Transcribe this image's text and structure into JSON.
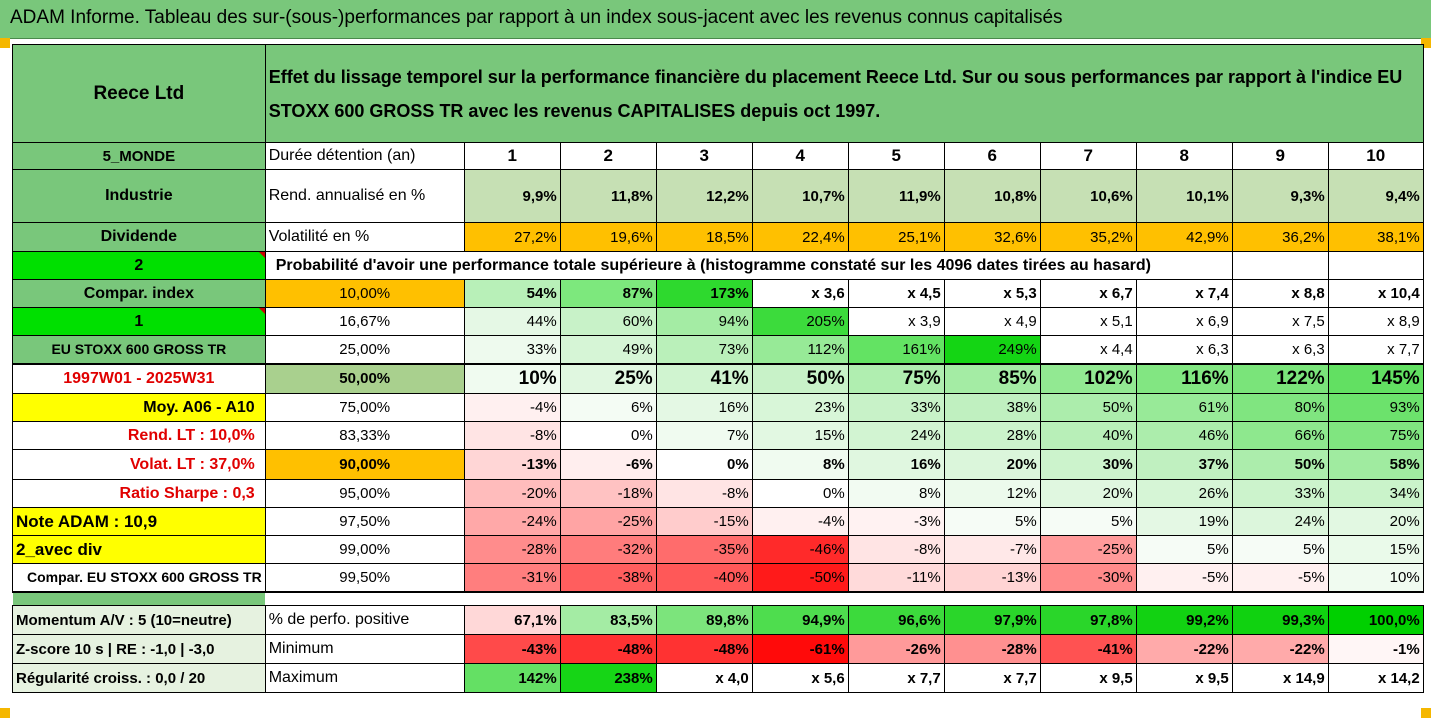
{
  "title": "ADAM Informe. Tableau des sur-(sous-)performances par rapport à un index sous-jacent avec les revenus connus capitalisés",
  "header": {
    "company": "Reece Ltd",
    "description_line1": "Effet du lissage temporel sur la performance financière du placement Reece Ltd. Sur ou sous performances par rapport à l'indice EU",
    "description_line2": "STOXX 600 GROSS TR avec les revenus CAPITALISES depuis oct 1997."
  },
  "colors": {
    "header_green": "#79c77b",
    "bright_green": "#00e000",
    "orange": "#ffc000",
    "yellow": "#ffff00",
    "red": "#ff0000"
  },
  "rows": [
    {
      "side": "5_MONDE",
      "label": "Durée détention (an)",
      "values": [
        "1",
        "2",
        "3",
        "4",
        "5",
        "6",
        "7",
        "8",
        "9",
        "10"
      ]
    },
    {
      "side": "Industrie",
      "label": "Rend. annualisé en %",
      "values": [
        "9,9%",
        "11,8%",
        "12,2%",
        "10,7%",
        "11,9%",
        "10,8%",
        "10,6%",
        "10,1%",
        "9,3%",
        "9,4%"
      ]
    },
    {
      "side": "Dividende",
      "label": "Volatilité en %",
      "values": [
        "27,2%",
        "19,6%",
        "18,5%",
        "22,4%",
        "25,1%",
        "32,6%",
        "35,2%",
        "42,9%",
        "36,2%",
        "38,1%"
      ]
    },
    {
      "side": "2",
      "label": "Probabilité d'avoir une performance totale supérieure à (histogramme constaté sur les 4096 dates tirées au hasard)"
    },
    {
      "side": "Compar. index",
      "pct": "10,00%",
      "values": [
        "54%",
        "87%",
        "173%",
        "x 3,6",
        "x 4,5",
        "x 5,3",
        "x 6,7",
        "x 7,4",
        "x 8,8",
        "x 10,4"
      ]
    },
    {
      "side": "1",
      "pct": "16,67%",
      "values": [
        "44%",
        "60%",
        "94%",
        "205%",
        "x 3,9",
        "x 4,9",
        "x 5,1",
        "x 6,9",
        "x 7,5",
        "x 8,9"
      ]
    },
    {
      "side": "EU STOXX 600 GROSS TR",
      "pct": "25,00%",
      "values": [
        "33%",
        "49%",
        "73%",
        "112%",
        "161%",
        "249%",
        "x 4,4",
        "x 6,3",
        "x 6,3",
        "x 7,7"
      ]
    },
    {
      "side": "1997W01 - 2025W31",
      "pct": "50,00%",
      "values": [
        "10%",
        "25%",
        "41%",
        "50%",
        "75%",
        "85%",
        "102%",
        "116%",
        "122%",
        "145%"
      ]
    },
    {
      "side": "Moy. A06 - A10",
      "pct": "75,00%",
      "values": [
        "-4%",
        "6%",
        "16%",
        "23%",
        "33%",
        "38%",
        "50%",
        "61%",
        "80%",
        "93%"
      ]
    },
    {
      "side": "Rend. LT :   10,0%",
      "pct": "83,33%",
      "values": [
        "-8%",
        "0%",
        "7%",
        "15%",
        "24%",
        "28%",
        "40%",
        "46%",
        "66%",
        "75%"
      ]
    },
    {
      "side": "Volat. LT :   37,0%",
      "pct": "90,00%",
      "values": [
        "-13%",
        "-6%",
        "0%",
        "8%",
        "16%",
        "20%",
        "30%",
        "37%",
        "50%",
        "58%"
      ]
    },
    {
      "side": "Ratio Sharpe :    0,3",
      "pct": "95,00%",
      "values": [
        "-20%",
        "-18%",
        "-8%",
        "0%",
        "8%",
        "12%",
        "20%",
        "26%",
        "33%",
        "34%"
      ]
    },
    {
      "side": "Note ADAM : 10,9",
      "pct": "97,50%",
      "values": [
        "-24%",
        "-25%",
        "-15%",
        "-4%",
        "-3%",
        "5%",
        "5%",
        "19%",
        "24%",
        "20%"
      ]
    },
    {
      "side": "2_avec div",
      "pct": "99,00%",
      "values": [
        "-28%",
        "-32%",
        "-35%",
        "-46%",
        "-8%",
        "-7%",
        "-25%",
        "5%",
        "5%",
        "15%"
      ]
    },
    {
      "side": "Compar. EU STOXX 600 GROSS TR",
      "pct": "99,50%",
      "values": [
        "-31%",
        "-38%",
        "-40%",
        "-50%",
        "-11%",
        "-13%",
        "-30%",
        "-5%",
        "-5%",
        "10%"
      ]
    },
    {
      "side": "Momentum A/V : 5 (10=neutre)",
      "label": "% de perfo. positive",
      "values": [
        "67,1%",
        "83,5%",
        "89,8%",
        "94,9%",
        "96,6%",
        "97,9%",
        "97,8%",
        "99,2%",
        "99,3%",
        "100,0%"
      ]
    },
    {
      "side": "Z-score 10 s  |  RE : -1,0  |  -3,0",
      "label": "Minimum",
      "values": [
        "-43%",
        "-48%",
        "-48%",
        "-61%",
        "-26%",
        "-28%",
        "-41%",
        "-22%",
        "-22%",
        "-1%"
      ]
    },
    {
      "side": "Régularité croiss. : 0,0 / 20",
      "label": "Maximum",
      "values": [
        "142%",
        "238%",
        "x 4,0",
        "x 5,6",
        "x 7,7",
        "x 7,7",
        "x 9,5",
        "x 9,5",
        "x 14,9",
        "x 14,2"
      ]
    }
  ]
}
